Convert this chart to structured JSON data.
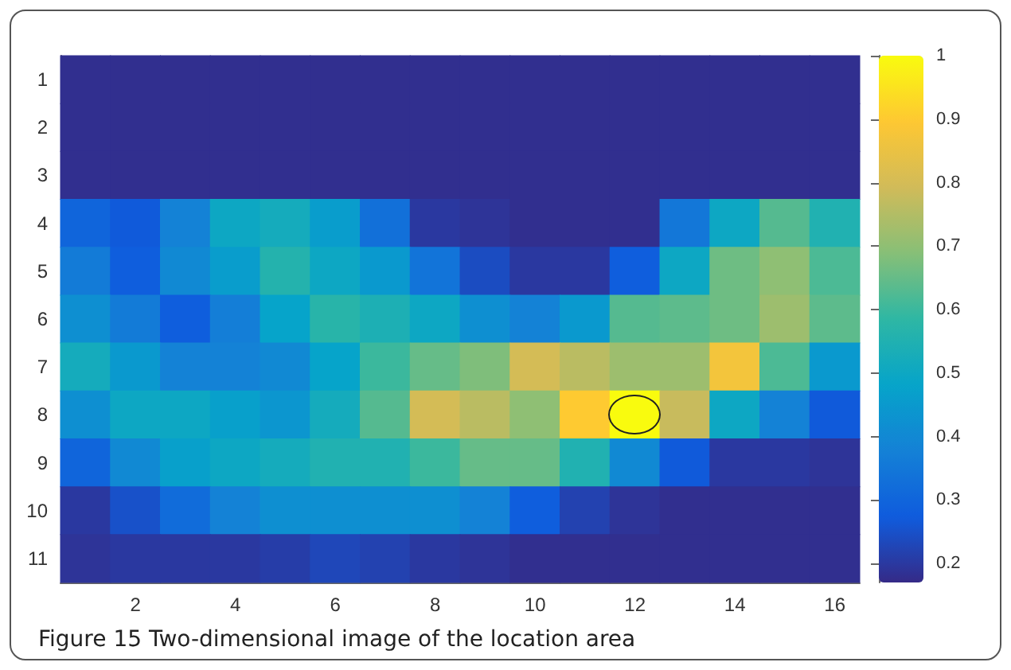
{
  "chart_data": {
    "type": "heatmap",
    "categories": [
      null,
      "2",
      null,
      "4",
      null,
      "6",
      null,
      "8",
      null,
      "10",
      null,
      "12",
      null,
      "14",
      null,
      "16"
    ],
    "y_categories": [
      "1",
      "2",
      "3",
      "4",
      "5",
      "6",
      "7",
      "8",
      "9",
      "10",
      "11"
    ],
    "cells": [
      [
        0.18,
        0.18,
        0.18,
        0.18,
        0.18,
        0.18,
        0.18,
        0.18,
        0.18,
        0.18,
        0.18,
        0.18,
        0.18,
        0.18,
        0.18,
        0.18
      ],
      [
        0.18,
        0.18,
        0.18,
        0.18,
        0.18,
        0.18,
        0.18,
        0.18,
        0.18,
        0.18,
        0.18,
        0.18,
        0.18,
        0.18,
        0.18,
        0.18
      ],
      [
        0.18,
        0.18,
        0.18,
        0.18,
        0.18,
        0.18,
        0.18,
        0.18,
        0.18,
        0.18,
        0.18,
        0.18,
        0.18,
        0.18,
        0.18,
        0.18
      ],
      [
        0.3,
        0.27,
        0.38,
        0.5,
        0.52,
        0.46,
        0.33,
        0.2,
        0.19,
        0.18,
        0.18,
        0.18,
        0.35,
        0.5,
        0.63,
        0.55
      ],
      [
        0.36,
        0.28,
        0.4,
        0.46,
        0.56,
        0.5,
        0.45,
        0.34,
        0.24,
        0.2,
        0.2,
        0.28,
        0.5,
        0.66,
        0.7,
        0.62
      ],
      [
        0.42,
        0.36,
        0.28,
        0.37,
        0.48,
        0.57,
        0.54,
        0.5,
        0.42,
        0.38,
        0.45,
        0.63,
        0.64,
        0.66,
        0.72,
        0.64
      ],
      [
        0.52,
        0.45,
        0.38,
        0.38,
        0.4,
        0.48,
        0.6,
        0.65,
        0.68,
        0.8,
        0.76,
        0.72,
        0.72,
        0.87,
        0.62,
        0.45
      ],
      [
        0.42,
        0.5,
        0.5,
        0.47,
        0.44,
        0.52,
        0.63,
        0.8,
        0.76,
        0.7,
        0.9,
        1,
        0.78,
        0.5,
        0.38,
        0.27
      ],
      [
        0.3,
        0.4,
        0.47,
        0.5,
        0.52,
        0.55,
        0.55,
        0.6,
        0.65,
        0.65,
        0.55,
        0.4,
        0.27,
        0.2,
        0.2,
        0.19
      ],
      [
        0.2,
        0.25,
        0.32,
        0.38,
        0.42,
        0.42,
        0.42,
        0.42,
        0.38,
        0.28,
        0.22,
        0.19,
        0.18,
        0.18,
        0.18,
        0.18
      ],
      [
        0.19,
        0.2,
        0.2,
        0.2,
        0.21,
        0.23,
        0.22,
        0.2,
        0.19,
        0.18,
        0.18,
        0.18,
        0.18,
        0.18,
        0.18,
        0.18
      ]
    ],
    "clim": [
      0.17,
      1
    ],
    "cticks": [
      0.2,
      0.3,
      0.4,
      0.5,
      0.6,
      0.7,
      0.8,
      0.9,
      1
    ],
    "annotations": [
      "Figure 15  Two-dimensional image of the location area"
    ]
  }
}
